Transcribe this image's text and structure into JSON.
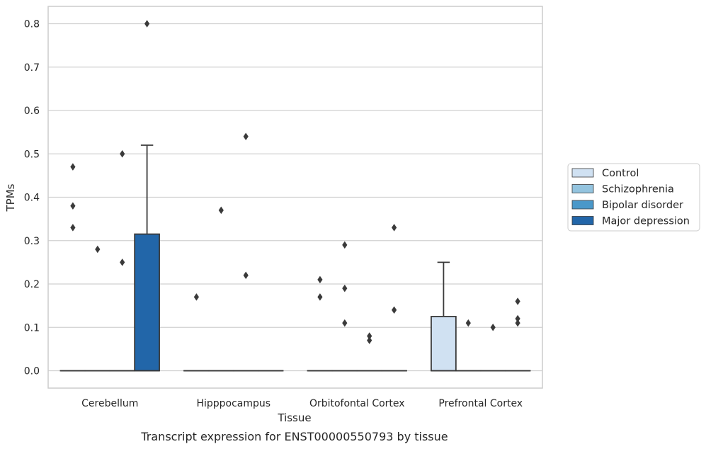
{
  "chart_data": {
    "type": "box",
    "caption": "Transcript expression for ENST00000550793 by tissue",
    "xlabel": "Tissue",
    "ylabel": "TPMs",
    "ylim": [
      -0.04,
      0.84
    ],
    "yticks": [
      "0.0",
      "0.1",
      "0.2",
      "0.3",
      "0.4",
      "0.5",
      "0.6",
      "0.7",
      "0.8"
    ],
    "grid": "horizontal",
    "legend_position": "right",
    "categories": [
      "Cerebellum",
      "Hipppocampus",
      "Orbitofontal Cortex",
      "Prefrontal Cortex"
    ],
    "series": [
      {
        "name": "Control",
        "color": "#d0e1f2",
        "boxes": [
          {
            "category": "Cerebellum",
            "min": 0,
            "q1": 0,
            "median": 0,
            "q3": 0,
            "max": 0,
            "outliers": [
              0.33,
              0.38,
              0.47
            ]
          },
          {
            "category": "Hipppocampus",
            "min": 0,
            "q1": 0,
            "median": 0,
            "q3": 0,
            "max": 0,
            "outliers": [
              0.17
            ]
          },
          {
            "category": "Orbitofontal Cortex",
            "min": 0,
            "q1": 0,
            "median": 0,
            "q3": 0,
            "max": 0,
            "outliers": [
              0.17,
              0.21
            ]
          },
          {
            "category": "Prefrontal Cortex",
            "min": 0,
            "q1": 0,
            "median": 0,
            "q3": 0.125,
            "max": 0.25,
            "outliers": []
          }
        ]
      },
      {
        "name": "Schizophrenia",
        "color": "#94c4df",
        "boxes": [
          {
            "category": "Cerebellum",
            "min": 0,
            "q1": 0,
            "median": 0,
            "q3": 0,
            "max": 0,
            "outliers": [
              0.28
            ]
          },
          {
            "category": "Hipppocampus",
            "min": 0,
            "q1": 0,
            "median": 0,
            "q3": 0,
            "max": 0,
            "outliers": [
              0.37
            ]
          },
          {
            "category": "Orbitofontal Cortex",
            "min": 0,
            "q1": 0,
            "median": 0,
            "q3": 0,
            "max": 0,
            "outliers": [
              0.11,
              0.19,
              0.29
            ]
          },
          {
            "category": "Prefrontal Cortex",
            "min": 0,
            "q1": 0,
            "median": 0,
            "q3": 0,
            "max": 0,
            "outliers": [
              0.11
            ]
          }
        ]
      },
      {
        "name": "Bipolar disorder",
        "color": "#4a98c9",
        "boxes": [
          {
            "category": "Cerebellum",
            "min": 0,
            "q1": 0,
            "median": 0,
            "q3": 0,
            "max": 0,
            "outliers": [
              0.25,
              0.5
            ]
          },
          {
            "category": "Hipppocampus",
            "min": 0,
            "q1": 0,
            "median": 0,
            "q3": 0,
            "max": 0,
            "outliers": [
              0.22,
              0.54
            ]
          },
          {
            "category": "Orbitofontal Cortex",
            "min": 0,
            "q1": 0,
            "median": 0,
            "q3": 0,
            "max": 0,
            "outliers": [
              0.07,
              0.08
            ]
          },
          {
            "category": "Prefrontal Cortex",
            "min": 0,
            "q1": 0,
            "median": 0,
            "q3": 0,
            "max": 0,
            "outliers": [
              0.1
            ]
          }
        ]
      },
      {
        "name": "Major depression",
        "color": "#2266a9",
        "boxes": [
          {
            "category": "Cerebellum",
            "min": 0,
            "q1": 0,
            "median": 0,
            "q3": 0.315,
            "max": 0.52,
            "outliers": [
              0.8
            ]
          },
          {
            "category": "Hipppocampus",
            "min": 0,
            "q1": 0,
            "median": 0,
            "q3": 0,
            "max": 0,
            "outliers": []
          },
          {
            "category": "Orbitofontal Cortex",
            "min": 0,
            "q1": 0,
            "median": 0,
            "q3": 0,
            "max": 0,
            "outliers": [
              0.14,
              0.33
            ]
          },
          {
            "category": "Prefrontal Cortex",
            "min": 0,
            "q1": 0,
            "median": 0,
            "q3": 0,
            "max": 0,
            "outliers": [
              0.11,
              0.12,
              0.16
            ]
          }
        ]
      }
    ],
    "colors": {
      "grid": "#d0d0d0",
      "frame": "#cccccc",
      "stroke": "#3a3a3a"
    }
  }
}
